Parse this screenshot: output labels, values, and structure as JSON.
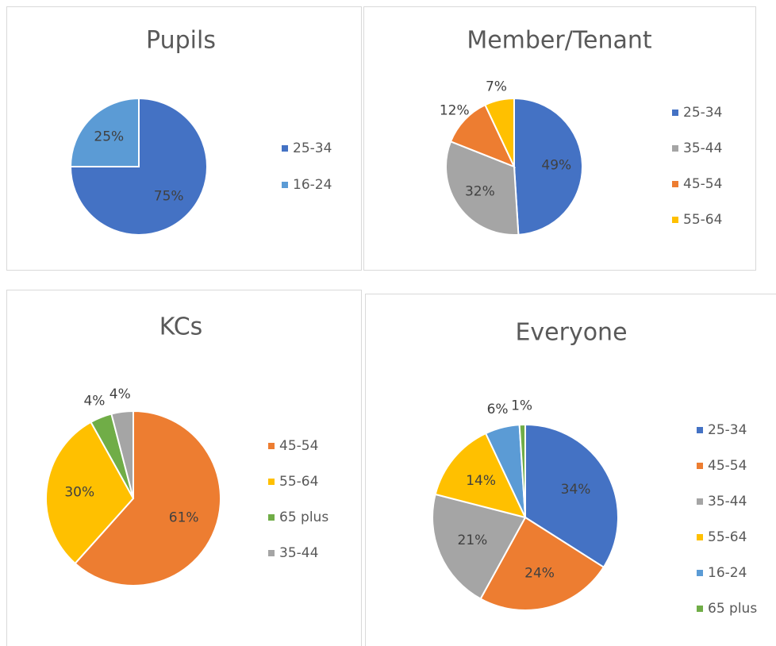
{
  "chart_data": [
    {
      "type": "pie",
      "title": "Pupils",
      "categories": [
        "25-34",
        "16-24"
      ],
      "values": [
        75,
        25
      ],
      "value_labels": [
        "75%",
        "25%"
      ],
      "colors": [
        "#4472c4",
        "#5b9bd5"
      ],
      "legend": "right"
    },
    {
      "type": "pie",
      "title": "Member/Tenant",
      "categories": [
        "25-34",
        "35-44",
        "45-54",
        "55-64"
      ],
      "values": [
        49,
        32,
        12,
        7
      ],
      "value_labels": [
        "49%",
        "32%",
        "12%",
        "7%"
      ],
      "colors": [
        "#4472c4",
        "#a5a5a5",
        "#ed7d31",
        "#ffc000"
      ],
      "legend": "right"
    },
    {
      "type": "pie",
      "title": "KCs",
      "categories": [
        "45-54",
        "55-64",
        "65 plus",
        "35-44"
      ],
      "values": [
        61,
        30,
        4,
        4
      ],
      "value_labels": [
        "61%",
        "30%",
        "4%",
        "4%"
      ],
      "colors": [
        "#ed7d31",
        "#ffc000",
        "#70ad47",
        "#a5a5a5"
      ],
      "legend": "right"
    },
    {
      "type": "pie",
      "title": "Everyone",
      "categories": [
        "25-34",
        "45-54",
        "35-44",
        "55-64",
        "16-24",
        "65 plus"
      ],
      "values": [
        34,
        24,
        21,
        14,
        6,
        1
      ],
      "value_labels": [
        "34%",
        "24%",
        "21%",
        "14%",
        "6%",
        "1%"
      ],
      "colors": [
        "#4472c4",
        "#ed7d31",
        "#a5a5a5",
        "#ffc000",
        "#5b9bd5",
        "#70ad47"
      ],
      "legend": "right"
    }
  ]
}
